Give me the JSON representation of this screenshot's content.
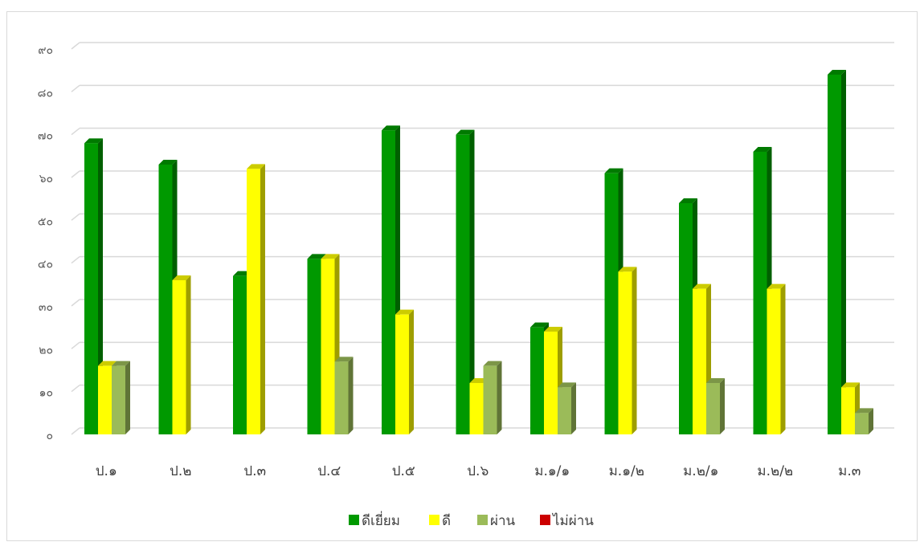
{
  "chart_data": {
    "type": "bar",
    "categories": [
      "ป.๑",
      "ป.๒",
      "ป.๓",
      "ป.๔",
      "ป.๕",
      "ป.๖",
      "ม.๑/๑",
      "ม.๑/๒",
      "ม.๒/๑",
      "ม.๒/๒",
      "ม.๓"
    ],
    "series": [
      {
        "name": "ดีเยี่ยม",
        "color": "#009900",
        "values": [
          68,
          63,
          37,
          41,
          71,
          70,
          25,
          61,
          54,
          66,
          84
        ]
      },
      {
        "name": "ดี",
        "color": "#FFFF00",
        "values": [
          16,
          36,
          62,
          41,
          28,
          12,
          24,
          38,
          34,
          34,
          11
        ]
      },
      {
        "name": "ผ่าน",
        "color": "#9BBB59",
        "values": [
          16,
          0,
          0,
          17,
          0,
          16,
          11,
          0,
          12,
          0,
          5
        ]
      },
      {
        "name": "ไม่ผ่าน",
        "color": "#CC0000",
        "values": [
          0,
          0,
          0,
          0,
          0,
          0,
          0,
          0,
          0,
          0,
          0
        ]
      }
    ],
    "y_ticks": [
      "๐",
      "๑๐",
      "๒๐",
      "๓๐",
      "๔๐",
      "๕๐",
      "๖๐",
      "๗๐",
      "๘๐",
      "๙๐"
    ],
    "ylim": [
      0,
      90
    ],
    "grid": true,
    "legend_position": "bottom",
    "style": "3d-clustered-column"
  }
}
